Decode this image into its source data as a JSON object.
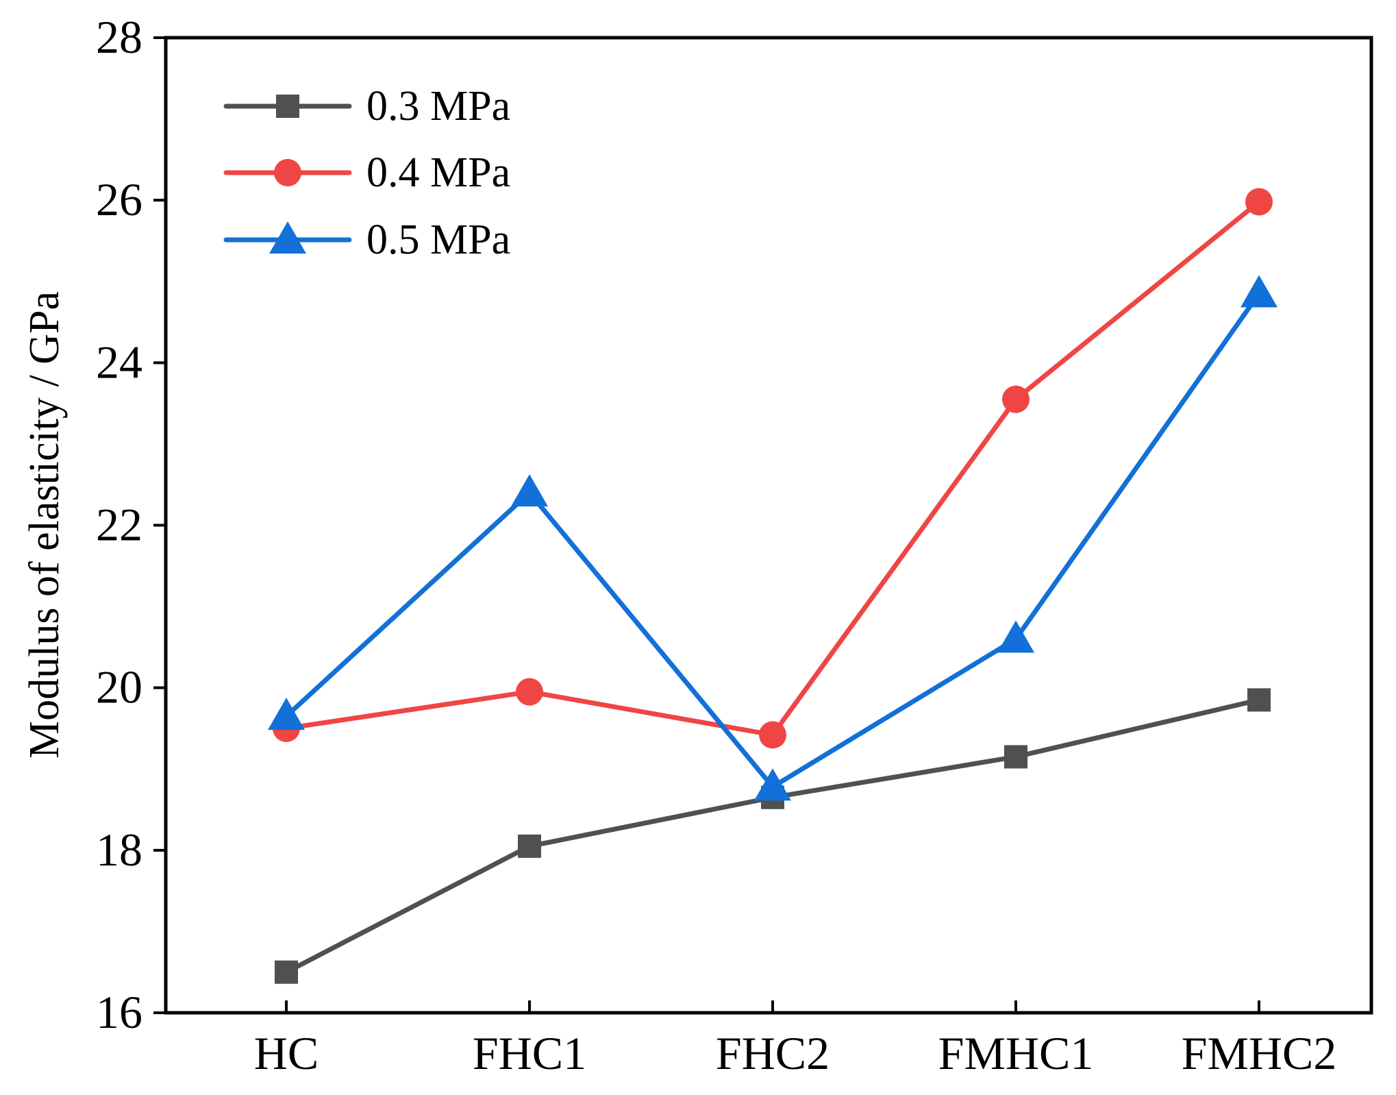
{
  "chart_data": {
    "type": "line",
    "title": "",
    "xlabel": "",
    "ylabel": "Modulus of elasticity / GPa",
    "categories": [
      "HC",
      "FHC1",
      "FHC2",
      "FMHC1",
      "FMHC2"
    ],
    "ylim": [
      16,
      28
    ],
    "yticks": [
      16,
      18,
      20,
      22,
      24,
      26,
      28
    ],
    "ytick_labels": [
      "16",
      "18",
      "20",
      "22",
      "24",
      "26",
      "28"
    ],
    "grid": false,
    "legend_position": "top-left",
    "series": [
      {
        "name": "0.3 MPa",
        "color": "#505050",
        "marker": "square",
        "values": [
          16.5,
          18.05,
          18.65,
          19.15,
          19.85
        ]
      },
      {
        "name": "0.4 MPa",
        "color": "#f04545",
        "marker": "circle",
        "values": [
          19.5,
          19.95,
          19.42,
          23.55,
          25.98
        ]
      },
      {
        "name": "0.5 MPa",
        "color": "#1270d8",
        "marker": "triangle",
        "values": [
          19.65,
          22.4,
          18.78,
          20.6,
          24.85
        ]
      }
    ]
  }
}
